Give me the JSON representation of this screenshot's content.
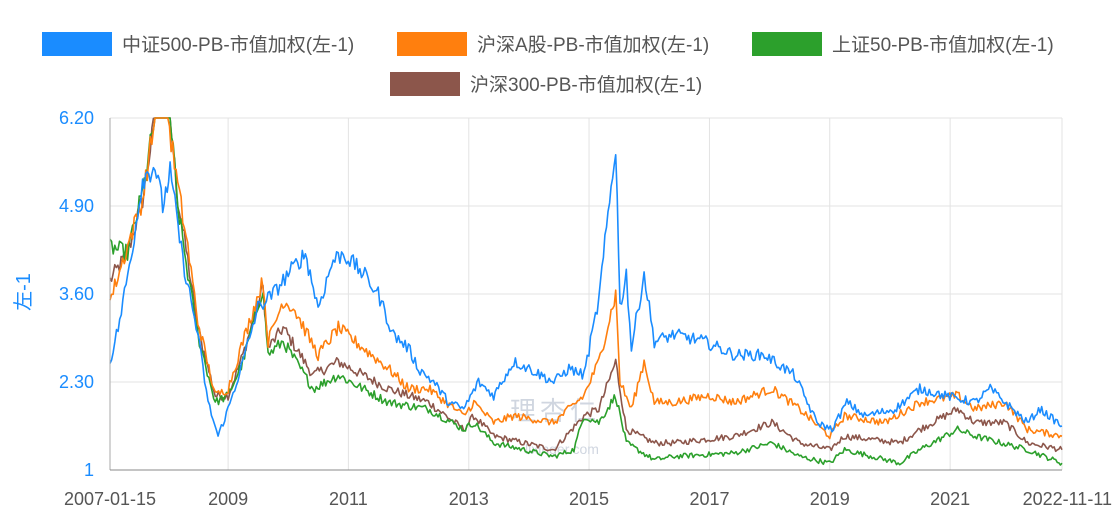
{
  "chart_data": {
    "type": "line",
    "title": "",
    "xlabel": "",
    "ylabel": "左-1",
    "ylim": [
      1,
      6.2
    ],
    "y_ticks": [
      "6.20",
      "4.90",
      "3.60",
      "2.30",
      "1"
    ],
    "x_ticks": [
      "2007-01-15",
      "2009",
      "2011",
      "2013",
      "2015",
      "2017",
      "2019",
      "2021",
      "2022-11-11"
    ],
    "x_range": [
      "2007-01-15",
      "2022-11-11"
    ],
    "grid": true,
    "legend_position": "top",
    "axis_color": "#1a8cff",
    "watermark": {
      "logo": "理杏仁",
      "url": "lixinger.com"
    },
    "series": [
      {
        "name": "中证500-PB-市值加权(左-1)",
        "color": "#1a8cff",
        "points": [
          [
            "2007-01-15",
            2.6
          ],
          [
            "2007-03-15",
            3.2
          ],
          [
            "2007-06-01",
            4.3
          ],
          [
            "2007-08-01",
            5.3
          ],
          [
            "2007-10-15",
            5.5
          ],
          [
            "2007-12-01",
            4.9
          ],
          [
            "2008-01-15",
            5.4
          ],
          [
            "2008-04-01",
            4.1
          ],
          [
            "2008-07-01",
            3.0
          ],
          [
            "2008-09-01",
            2.0
          ],
          [
            "2008-11-01",
            1.5
          ],
          [
            "2009-01-01",
            1.9
          ],
          [
            "2009-04-01",
            2.6
          ],
          [
            "2009-07-01",
            3.4
          ],
          [
            "2009-10-01",
            3.6
          ],
          [
            "2010-01-01",
            3.9
          ],
          [
            "2010-04-15",
            4.2
          ],
          [
            "2010-07-01",
            3.4
          ],
          [
            "2010-10-01",
            4.1
          ],
          [
            "2010-12-01",
            4.2
          ],
          [
            "2011-04-01",
            3.9
          ],
          [
            "2011-07-01",
            3.6
          ],
          [
            "2011-10-01",
            3.0
          ],
          [
            "2012-01-01",
            2.8
          ],
          [
            "2012-03-01",
            2.5
          ],
          [
            "2012-06-01",
            2.3
          ],
          [
            "2012-09-01",
            2.0
          ],
          [
            "2012-12-01",
            1.9
          ],
          [
            "2013-03-01",
            2.3
          ],
          [
            "2013-06-01",
            2.1
          ],
          [
            "2013-10-01",
            2.6
          ],
          [
            "2014-01-01",
            2.5
          ],
          [
            "2014-06-01",
            2.3
          ],
          [
            "2014-09-01",
            2.5
          ],
          [
            "2014-12-01",
            2.4
          ],
          [
            "2015-03-01",
            3.5
          ],
          [
            "2015-06-12",
            5.8
          ],
          [
            "2015-07-08",
            3.4
          ],
          [
            "2015-08-15",
            3.9
          ],
          [
            "2015-09-15",
            2.8
          ],
          [
            "2015-12-01",
            3.9
          ],
          [
            "2016-02-01",
            2.9
          ],
          [
            "2016-06-01",
            3.0
          ],
          [
            "2016-12-01",
            2.9
          ],
          [
            "2017-06-01",
            2.7
          ],
          [
            "2017-12-01",
            2.7
          ],
          [
            "2018-06-01",
            2.4
          ],
          [
            "2018-10-15",
            1.7
          ],
          [
            "2019-01-15",
            1.6
          ],
          [
            "2019-04-15",
            2.0
          ],
          [
            "2019-08-01",
            1.8
          ],
          [
            "2020-02-01",
            1.9
          ],
          [
            "2020-07-01",
            2.2
          ],
          [
            "2020-12-01",
            2.1
          ],
          [
            "2021-06-01",
            2.0
          ],
          [
            "2021-09-01",
            2.2
          ],
          [
            "2022-04-15",
            1.7
          ],
          [
            "2022-07-01",
            1.9
          ],
          [
            "2022-11-11",
            1.65
          ]
        ]
      },
      {
        "name": "沪深A股-PB-市值加权(左-1)",
        "color": "#ff7f0e",
        "points": [
          [
            "2007-01-15",
            3.5
          ],
          [
            "2007-05-01",
            4.3
          ],
          [
            "2007-08-01",
            5.0
          ],
          [
            "2007-10-15",
            6.2
          ],
          [
            "2008-01-01",
            6.2
          ],
          [
            "2008-03-01",
            5.2
          ],
          [
            "2008-05-01",
            4.3
          ],
          [
            "2008-07-01",
            3.2
          ],
          [
            "2008-10-15",
            2.1
          ],
          [
            "2009-01-01",
            2.2
          ],
          [
            "2009-04-01",
            2.9
          ],
          [
            "2009-08-01",
            3.8
          ],
          [
            "2009-09-01",
            2.9
          ],
          [
            "2009-12-01",
            3.5
          ],
          [
            "2010-02-01",
            3.4
          ],
          [
            "2010-07-01",
            2.7
          ],
          [
            "2010-11-01",
            3.1
          ],
          [
            "2011-04-01",
            2.8
          ],
          [
            "2011-09-01",
            2.5
          ],
          [
            "2012-01-01",
            2.2
          ],
          [
            "2012-05-01",
            2.2
          ],
          [
            "2012-12-01",
            1.8
          ],
          [
            "2013-02-01",
            2.0
          ],
          [
            "2013-06-01",
            1.7
          ],
          [
            "2013-10-01",
            1.8
          ],
          [
            "2014-06-01",
            1.7
          ],
          [
            "2014-12-01",
            2.1
          ],
          [
            "2015-03-01",
            2.6
          ],
          [
            "2015-06-12",
            3.6
          ],
          [
            "2015-07-08",
            2.3
          ],
          [
            "2015-09-15",
            1.9
          ],
          [
            "2015-12-01",
            2.6
          ],
          [
            "2016-02-01",
            2.0
          ],
          [
            "2016-06-01",
            2.0
          ],
          [
            "2017-01-01",
            2.1
          ],
          [
            "2017-06-01",
            2.0
          ],
          [
            "2018-01-15",
            2.2
          ],
          [
            "2018-07-01",
            1.9
          ],
          [
            "2019-01-01",
            1.5
          ],
          [
            "2019-04-01",
            1.8
          ],
          [
            "2019-12-01",
            1.7
          ],
          [
            "2020-07-01",
            2.0
          ],
          [
            "2021-02-15",
            2.1
          ],
          [
            "2021-06-01",
            1.9
          ],
          [
            "2021-12-01",
            2.0
          ],
          [
            "2022-04-15",
            1.6
          ],
          [
            "2022-11-11",
            1.5
          ]
        ]
      },
      {
        "name": "上证50-PB-市值加权(左-1)",
        "color": "#2ca02c",
        "points": [
          [
            "2007-01-15",
            4.3
          ],
          [
            "2007-05-01",
            4.2
          ],
          [
            "2007-08-01",
            5.1
          ],
          [
            "2007-10-15",
            6.2
          ],
          [
            "2008-01-15",
            6.2
          ],
          [
            "2008-03-01",
            4.9
          ],
          [
            "2008-05-01",
            3.9
          ],
          [
            "2008-07-01",
            3.0
          ],
          [
            "2008-10-15",
            2.0
          ],
          [
            "2009-01-01",
            2.1
          ],
          [
            "2009-04-01",
            2.6
          ],
          [
            "2009-08-01",
            3.7
          ],
          [
            "2009-09-01",
            2.7
          ],
          [
            "2009-12-01",
            2.9
          ],
          [
            "2010-06-01",
            2.2
          ],
          [
            "2010-11-01",
            2.4
          ],
          [
            "2011-04-01",
            2.2
          ],
          [
            "2011-09-01",
            2.0
          ],
          [
            "2012-05-01",
            1.9
          ],
          [
            "2012-12-01",
            1.6
          ],
          [
            "2013-02-01",
            1.7
          ],
          [
            "2013-06-01",
            1.4
          ],
          [
            "2013-12-01",
            1.3
          ],
          [
            "2014-06-01",
            1.2
          ],
          [
            "2014-10-01",
            1.3
          ],
          [
            "2014-12-01",
            1.8
          ],
          [
            "2015-03-01",
            1.7
          ],
          [
            "2015-06-12",
            2.1
          ],
          [
            "2015-08-15",
            1.4
          ],
          [
            "2016-02-01",
            1.15
          ],
          [
            "2016-06-01",
            1.2
          ],
          [
            "2017-06-01",
            1.25
          ],
          [
            "2018-01-15",
            1.4
          ],
          [
            "2018-07-01",
            1.2
          ],
          [
            "2019-01-01",
            1.1
          ],
          [
            "2019-04-01",
            1.3
          ],
          [
            "2020-03-01",
            1.1
          ],
          [
            "2020-07-01",
            1.3
          ],
          [
            "2021-02-15",
            1.6
          ],
          [
            "2021-06-01",
            1.5
          ],
          [
            "2022-04-15",
            1.3
          ],
          [
            "2022-11-11",
            1.1
          ]
        ]
      },
      {
        "name": "沪深300-PB-市值加权(左-1)",
        "color": "#8c564b",
        "points": [
          [
            "2007-01-15",
            3.8
          ],
          [
            "2007-05-01",
            4.2
          ],
          [
            "2007-08-01",
            5.0
          ],
          [
            "2007-10-15",
            6.2
          ],
          [
            "2008-01-15",
            6.2
          ],
          [
            "2008-03-01",
            5.0
          ],
          [
            "2008-05-01",
            4.1
          ],
          [
            "2008-07-01",
            3.1
          ],
          [
            "2008-10-15",
            2.1
          ],
          [
            "2009-01-01",
            2.1
          ],
          [
            "2009-04-01",
            2.7
          ],
          [
            "2009-08-01",
            3.7
          ],
          [
            "2009-09-01",
            2.8
          ],
          [
            "2009-12-01",
            3.1
          ],
          [
            "2010-06-01",
            2.4
          ],
          [
            "2010-11-01",
            2.6
          ],
          [
            "2011-04-01",
            2.4
          ],
          [
            "2011-09-01",
            2.2
          ],
          [
            "2012-05-01",
            2.0
          ],
          [
            "2012-12-01",
            1.6
          ],
          [
            "2013-02-01",
            1.8
          ],
          [
            "2013-06-01",
            1.5
          ],
          [
            "2013-12-01",
            1.4
          ],
          [
            "2014-06-01",
            1.3
          ],
          [
            "2014-12-01",
            1.8
          ],
          [
            "2015-03-01",
            1.9
          ],
          [
            "2015-06-12",
            2.6
          ],
          [
            "2015-08-15",
            1.6
          ],
          [
            "2016-02-01",
            1.4
          ],
          [
            "2016-06-01",
            1.4
          ],
          [
            "2017-06-01",
            1.5
          ],
          [
            "2018-01-15",
            1.7
          ],
          [
            "2018-07-01",
            1.4
          ],
          [
            "2019-01-01",
            1.3
          ],
          [
            "2019-04-01",
            1.5
          ],
          [
            "2020-03-01",
            1.4
          ],
          [
            "2020-07-01",
            1.6
          ],
          [
            "2021-02-15",
            1.9
          ],
          [
            "2021-06-01",
            1.7
          ],
          [
            "2021-12-01",
            1.7
          ],
          [
            "2022-04-15",
            1.4
          ],
          [
            "2022-11-11",
            1.3
          ]
        ]
      }
    ]
  }
}
